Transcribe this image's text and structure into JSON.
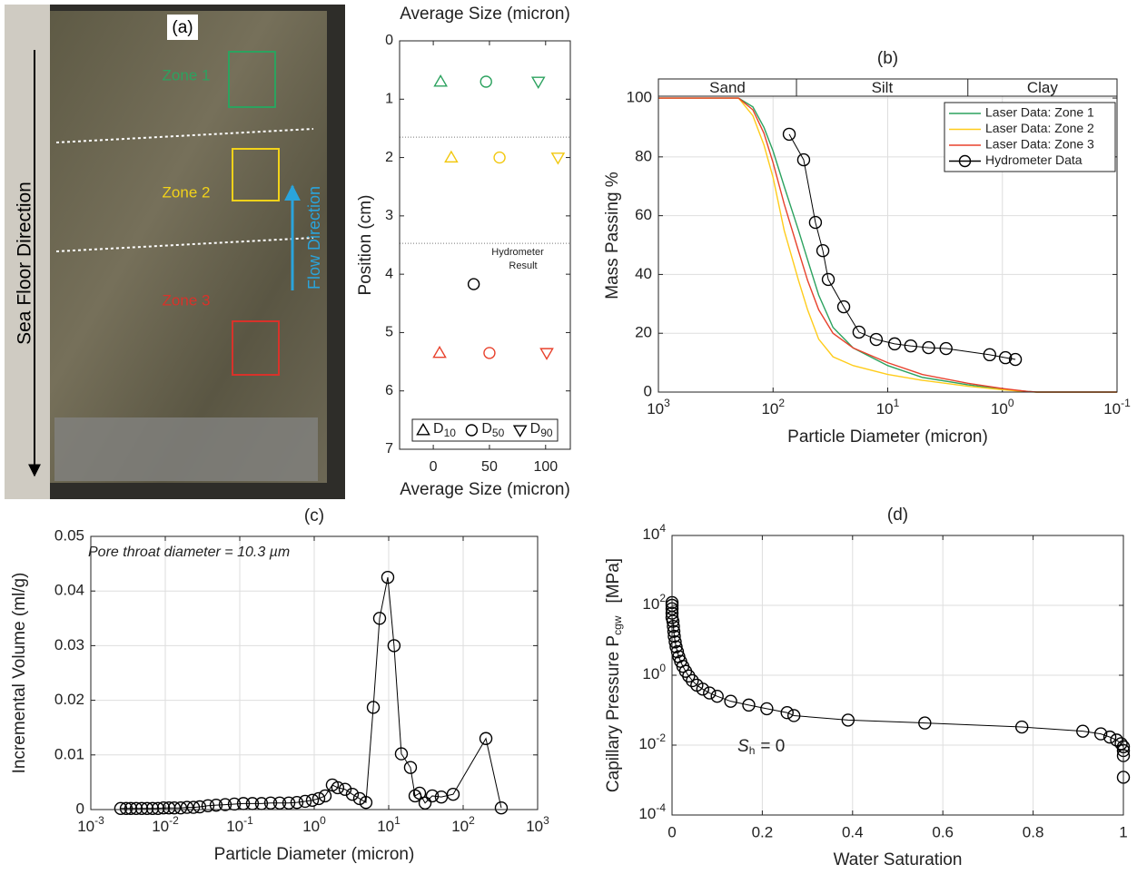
{
  "photo": {
    "label": "(a)",
    "zones": [
      "Zone 1",
      "Zone 2",
      "Zone 3"
    ],
    "left_arrow": "Sea Floor Direction",
    "flow_arrow": "Flow Direction"
  },
  "chart_data": [
    {
      "type": "scatter",
      "x2label": "Average Size (micron)",
      "xlabel": "Average Size (micron)",
      "ylabel": "Position (cm)",
      "xlim": [
        -30,
        122
      ],
      "ylim": [
        7,
        0
      ],
      "xticks": [
        0,
        50,
        100
      ],
      "yticks": [
        0,
        1,
        2,
        3,
        4,
        5,
        6,
        7
      ],
      "hlines": [
        1.65,
        3.47
      ],
      "annotation": [
        "Hydrometer",
        "Result"
      ],
      "legend": "bottom",
      "series": [
        {
          "name": "D",
          "sub": "10",
          "marker": "triangle-up",
          "colors": [
            "#2ca25f",
            "#f2c80f",
            "#e8412c"
          ],
          "x": [
            6.5,
            16,
            5.6
          ],
          "values": [
            0.7,
            2,
            5.35
          ]
        },
        {
          "name": "D",
          "sub": "50",
          "marker": "circle",
          "colors": [
            "#2ca25f",
            "#f2c80f",
            "#e8412c"
          ],
          "x": [
            47,
            59,
            50
          ],
          "values": [
            0.7,
            2,
            5.35
          ]
        },
        {
          "name": "D",
          "sub": "90",
          "marker": "triangle-down",
          "colors": [
            "#2ca25f",
            "#f2c80f",
            "#e8412c"
          ],
          "x": [
            93.5,
            111,
            101
          ],
          "values": [
            0.7,
            2,
            5.35
          ]
        },
        {
          "marker": "circle",
          "colors": [
            "#000000"
          ],
          "x": [
            36
          ],
          "values": [
            4.17
          ]
        }
      ]
    },
    {
      "type": "line",
      "title": "(b)",
      "xlabel": "Particle Diameter (micron)",
      "ylabel": "Mass Passing %",
      "xscale": "log",
      "xlim": [
        1000,
        0.1
      ],
      "ylim": [
        0,
        106.5
      ],
      "xticks": [
        {
          "value": 1000,
          "label": "10",
          "exp": "3"
        },
        {
          "value": 100,
          "label": "10",
          "exp": "2"
        },
        {
          "value": 10,
          "label": "10",
          "exp": "1"
        },
        {
          "value": 1,
          "label": "10",
          "exp": "0"
        },
        {
          "value": 0.1,
          "label": "10",
          "exp": "-1"
        }
      ],
      "yticks": [
        0,
        20,
        40,
        60,
        80,
        100
      ],
      "grid": true,
      "bands": [
        "Sand",
        "Silt",
        "Clay"
      ],
      "bounds": [
        62.5,
        2
      ],
      "legend": "upper right",
      "x": [
        1000,
        200,
        150,
        120,
        100,
        80,
        60,
        50,
        40,
        30,
        20,
        10,
        5,
        2,
        1,
        0.6,
        0.5,
        0.1
      ],
      "series": [
        {
          "name": "Laser Data: Zone 1",
          "color": "#2ca25f",
          "values": [
            100,
            100,
            97,
            90,
            82,
            70,
            55,
            45,
            33,
            22,
            15,
            9,
            5,
            2.5,
            1,
            0.2,
            0,
            0
          ]
        },
        {
          "name": "Laser Data: Zone 2",
          "color": "#ffcc1a",
          "values": [
            100,
            100,
            94,
            84,
            73,
            55,
            38,
            28,
            18,
            12,
            9,
            6,
            4,
            2,
            0.8,
            0.1,
            0,
            0
          ]
        },
        {
          "name": "Laser Data: Zone 3",
          "color": "#e8412c",
          "values": [
            100,
            100,
            96,
            88,
            78,
            64,
            48,
            38,
            28,
            20,
            15,
            10,
            6,
            3,
            1.2,
            0.2,
            0,
            0
          ]
        },
        {
          "name": "Hydrometer Data",
          "color": "#000000",
          "marker": "circle",
          "x": [
            72.3,
            54.1,
            42.7,
            36.8,
            33,
            24.2,
            17.8,
            12.6,
            8.7,
            6.3,
            4.4,
            3.1,
            1.29,
            0.94,
            0.77
          ],
          "values": [
            87.7,
            79,
            57.7,
            48.1,
            38.3,
            29,
            20.4,
            17.9,
            16.4,
            15.7,
            15.1,
            14.8,
            12.7,
            11.7,
            11.1
          ]
        }
      ]
    },
    {
      "type": "line",
      "title": "(c)",
      "xlabel": "Particle Diameter (micron)",
      "ylabel": "Incremental Volume (ml/g)",
      "xscale": "log",
      "xlim": [
        0.001,
        1000
      ],
      "ylim": [
        0,
        0.05
      ],
      "xticks": [
        {
          "value": 0.001,
          "label": "10",
          "exp": "-3"
        },
        {
          "value": 0.01,
          "label": "10",
          "exp": "-2"
        },
        {
          "value": 0.1,
          "label": "10",
          "exp": "-1"
        },
        {
          "value": 1,
          "label": "10",
          "exp": "0"
        },
        {
          "value": 10,
          "label": "10",
          "exp": "1"
        },
        {
          "value": 100,
          "label": "10",
          "exp": "2"
        },
        {
          "value": 1000,
          "label": "10",
          "exp": "3"
        }
      ],
      "yticks": [
        0,
        0.01,
        0.02,
        0.03,
        0.04,
        0.05
      ],
      "grid": true,
      "annotation": "Pore throat diameter = 10.3 µm",
      "series": [
        {
          "color": "#000000",
          "marker": "circle",
          "x": [
            0.00252,
            0.00299,
            0.00344,
            0.00407,
            0.00482,
            0.0057,
            0.00675,
            0.00798,
            0.00946,
            0.0112,
            0.0132,
            0.0161,
            0.0196,
            0.0239,
            0.029,
            0.0374,
            0.0482,
            0.0638,
            0.0845,
            0.112,
            0.148,
            0.196,
            0.26,
            0.344,
            0.456,
            0.586,
            0.755,
            0.946,
            1.15,
            1.4,
            1.75,
            2.07,
            2.6,
            3.25,
            4.07,
            4.95,
            6.21,
            7.55,
            9.72,
            11.8,
            14.8,
            19.6,
            22.6,
            26,
            30.8,
            38.5,
            50.9,
            73.4,
            202,
            325
          ],
          "values": [
            0.0002,
            0.0002,
            0.0002,
            0.0002,
            0.0002,
            0.0002,
            0.0002,
            0.0002,
            0.0003,
            0.0003,
            0.0003,
            0.0003,
            0.0004,
            0.0004,
            0.0005,
            0.0007,
            0.0008,
            0.0009,
            0.001,
            0.0011,
            0.0011,
            0.0011,
            0.0012,
            0.0012,
            0.0012,
            0.0013,
            0.0015,
            0.0017,
            0.002,
            0.0025,
            0.0045,
            0.004,
            0.0037,
            0.0028,
            0.002,
            0.0013,
            0.0187,
            0.035,
            0.0425,
            0.03,
            0.0102,
            0.0077,
            0.0025,
            0.003,
            0.0012,
            0.0025,
            0.0023,
            0.0028,
            0.013,
            0.0003
          ]
        }
      ]
    },
    {
      "type": "line",
      "title": "(d)",
      "xlabel": "Water Saturation",
      "ylabel": {
        "text": "Capillary Pressure P",
        "sub": "cgw",
        "unit": "[MPa]"
      },
      "yscale": "log",
      "xlim": [
        0,
        1
      ],
      "ylim": [
        0.0001,
        10000
      ],
      "xticks": [
        0,
        0.2,
        0.4,
        0.6,
        0.8,
        1
      ],
      "yticks": [
        {
          "value": 0.0001,
          "label": "10",
          "exp": "-4"
        },
        {
          "value": 0.01,
          "label": "10",
          "exp": "-2"
        },
        {
          "value": 1,
          "label": "10",
          "exp": "0"
        },
        {
          "value": 100,
          "label": "10",
          "exp": "2"
        },
        {
          "value": 10000,
          "label": "10",
          "exp": "4"
        }
      ],
      "grid": true,
      "annotation": {
        "text": "S",
        "sub": "h",
        "rest": "= 0"
      },
      "series": [
        {
          "color": "#000000",
          "marker": "circle",
          "x": [
            0,
            0,
            0,
            0,
            0,
            0.002,
            0.003,
            0.004,
            0.005,
            0.007,
            0.009,
            0.012,
            0.015,
            0.019,
            0.024,
            0.03,
            0.037,
            0.045,
            0.055,
            0.068,
            0.083,
            0.1,
            0.13,
            0.17,
            0.21,
            0.255,
            0.27,
            0.39,
            0.56,
            0.775,
            0.91,
            0.95,
            0.97,
            0.985,
            0.995,
            1,
            1,
            1,
            1
          ],
          "values": [
            120,
            100,
            80,
            60,
            45,
            35,
            25,
            18,
            13,
            9,
            6.5,
            4.7,
            3.4,
            2.5,
            1.8,
            1.3,
            0.95,
            0.7,
            0.52,
            0.4,
            0.31,
            0.25,
            0.18,
            0.14,
            0.11,
            0.085,
            0.07,
            0.052,
            0.043,
            0.033,
            0.025,
            0.021,
            0.017,
            0.014,
            0.011,
            0.009,
            0.007,
            0.005,
            0.0012
          ]
        }
      ]
    }
  ]
}
